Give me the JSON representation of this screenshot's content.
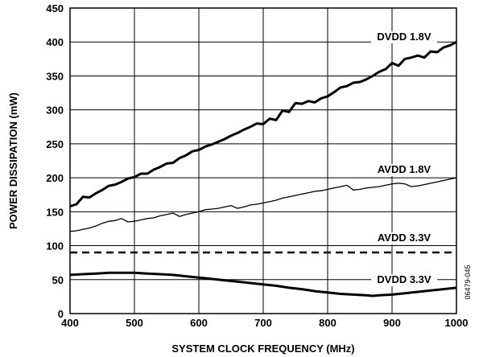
{
  "chart_data": {
    "type": "line",
    "title": "",
    "xlabel": "SYSTEM CLOCK FREQUENCY (MHz)",
    "ylabel": "POWER DISSIPATION (mW)",
    "xlim": [
      400,
      1000
    ],
    "ylim": [
      0,
      450
    ],
    "xticks": [
      400,
      500,
      600,
      700,
      800,
      900,
      1000
    ],
    "yticks": [
      0,
      50,
      100,
      150,
      200,
      250,
      300,
      350,
      400,
      450
    ],
    "grid": true,
    "figure_note": "06479-045",
    "series": [
      {
        "name": "DVDD 1.8V",
        "style": "thick",
        "points": [
          [
            400,
            158
          ],
          [
            410,
            161
          ],
          [
            420,
            172
          ],
          [
            430,
            171
          ],
          [
            440,
            177
          ],
          [
            450,
            182
          ],
          [
            460,
            188
          ],
          [
            470,
            190
          ],
          [
            480,
            194
          ],
          [
            490,
            199
          ],
          [
            500,
            201
          ],
          [
            510,
            206
          ],
          [
            520,
            206
          ],
          [
            530,
            212
          ],
          [
            540,
            216
          ],
          [
            550,
            221
          ],
          [
            560,
            222
          ],
          [
            570,
            229
          ],
          [
            580,
            233
          ],
          [
            590,
            239
          ],
          [
            600,
            241
          ],
          [
            610,
            246
          ],
          [
            620,
            249
          ],
          [
            630,
            253
          ],
          [
            640,
            257
          ],
          [
            650,
            262
          ],
          [
            660,
            266
          ],
          [
            670,
            271
          ],
          [
            680,
            275
          ],
          [
            690,
            280
          ],
          [
            700,
            279
          ],
          [
            710,
            287
          ],
          [
            720,
            285
          ],
          [
            730,
            299
          ],
          [
            740,
            297
          ],
          [
            750,
            310
          ],
          [
            760,
            309
          ],
          [
            770,
            313
          ],
          [
            780,
            311
          ],
          [
            790,
            317
          ],
          [
            800,
            320
          ],
          [
            810,
            326
          ],
          [
            820,
            333
          ],
          [
            830,
            335
          ],
          [
            840,
            340
          ],
          [
            850,
            341
          ],
          [
            860,
            345
          ],
          [
            870,
            350
          ],
          [
            880,
            356
          ],
          [
            890,
            360
          ],
          [
            900,
            369
          ],
          [
            910,
            365
          ],
          [
            920,
            375
          ],
          [
            930,
            377
          ],
          [
            940,
            380
          ],
          [
            950,
            377
          ],
          [
            960,
            386
          ],
          [
            970,
            385
          ],
          [
            980,
            392
          ],
          [
            990,
            395
          ],
          [
            1000,
            400
          ]
        ]
      },
      {
        "name": "AVDD 1.8V",
        "style": "thin",
        "points": [
          [
            400,
            121
          ],
          [
            410,
            122
          ],
          [
            420,
            124
          ],
          [
            430,
            126
          ],
          [
            440,
            129
          ],
          [
            450,
            133
          ],
          [
            460,
            136
          ],
          [
            470,
            137
          ],
          [
            480,
            140
          ],
          [
            490,
            135
          ],
          [
            500,
            136
          ],
          [
            510,
            138
          ],
          [
            520,
            140
          ],
          [
            530,
            141
          ],
          [
            540,
            144
          ],
          [
            550,
            146
          ],
          [
            560,
            148
          ],
          [
            570,
            143
          ],
          [
            580,
            146
          ],
          [
            590,
            148
          ],
          [
            600,
            150
          ],
          [
            610,
            153
          ],
          [
            620,
            154
          ],
          [
            630,
            155
          ],
          [
            640,
            157
          ],
          [
            650,
            159
          ],
          [
            660,
            155
          ],
          [
            670,
            157
          ],
          [
            680,
            160
          ],
          [
            690,
            161
          ],
          [
            700,
            163
          ],
          [
            710,
            165
          ],
          [
            720,
            167
          ],
          [
            730,
            170
          ],
          [
            740,
            172
          ],
          [
            750,
            174
          ],
          [
            760,
            176
          ],
          [
            770,
            178
          ],
          [
            780,
            180
          ],
          [
            790,
            181
          ],
          [
            800,
            183
          ],
          [
            810,
            185
          ],
          [
            820,
            187
          ],
          [
            830,
            189
          ],
          [
            840,
            182
          ],
          [
            850,
            183
          ],
          [
            860,
            185
          ],
          [
            870,
            186
          ],
          [
            880,
            187
          ],
          [
            890,
            189
          ],
          [
            900,
            191
          ],
          [
            910,
            192
          ],
          [
            920,
            191
          ],
          [
            930,
            187
          ],
          [
            940,
            188
          ],
          [
            950,
            190
          ],
          [
            960,
            192
          ],
          [
            970,
            194
          ],
          [
            980,
            196
          ],
          [
            990,
            198
          ],
          [
            1000,
            200
          ]
        ]
      },
      {
        "name": "AVDD 3.3V",
        "style": "dashed",
        "points": [
          [
            400,
            90
          ],
          [
            1000,
            90
          ]
        ]
      },
      {
        "name": "DVDD 3.3V",
        "style": "thick",
        "points": [
          [
            400,
            57
          ],
          [
            420,
            58
          ],
          [
            440,
            59
          ],
          [
            460,
            60
          ],
          [
            480,
            60
          ],
          [
            500,
            60
          ],
          [
            520,
            59
          ],
          [
            540,
            58
          ],
          [
            560,
            57
          ],
          [
            580,
            55
          ],
          [
            600,
            53
          ],
          [
            620,
            51
          ],
          [
            640,
            49
          ],
          [
            660,
            47
          ],
          [
            680,
            45
          ],
          [
            700,
            43
          ],
          [
            720,
            41
          ],
          [
            740,
            38
          ],
          [
            760,
            36
          ],
          [
            780,
            33
          ],
          [
            800,
            31
          ],
          [
            820,
            29
          ],
          [
            840,
            28
          ],
          [
            860,
            27
          ],
          [
            870,
            26
          ],
          [
            880,
            27
          ],
          [
            900,
            28
          ],
          [
            920,
            30
          ],
          [
            940,
            32
          ],
          [
            960,
            34
          ],
          [
            980,
            36
          ],
          [
            1000,
            38
          ]
        ]
      }
    ]
  }
}
